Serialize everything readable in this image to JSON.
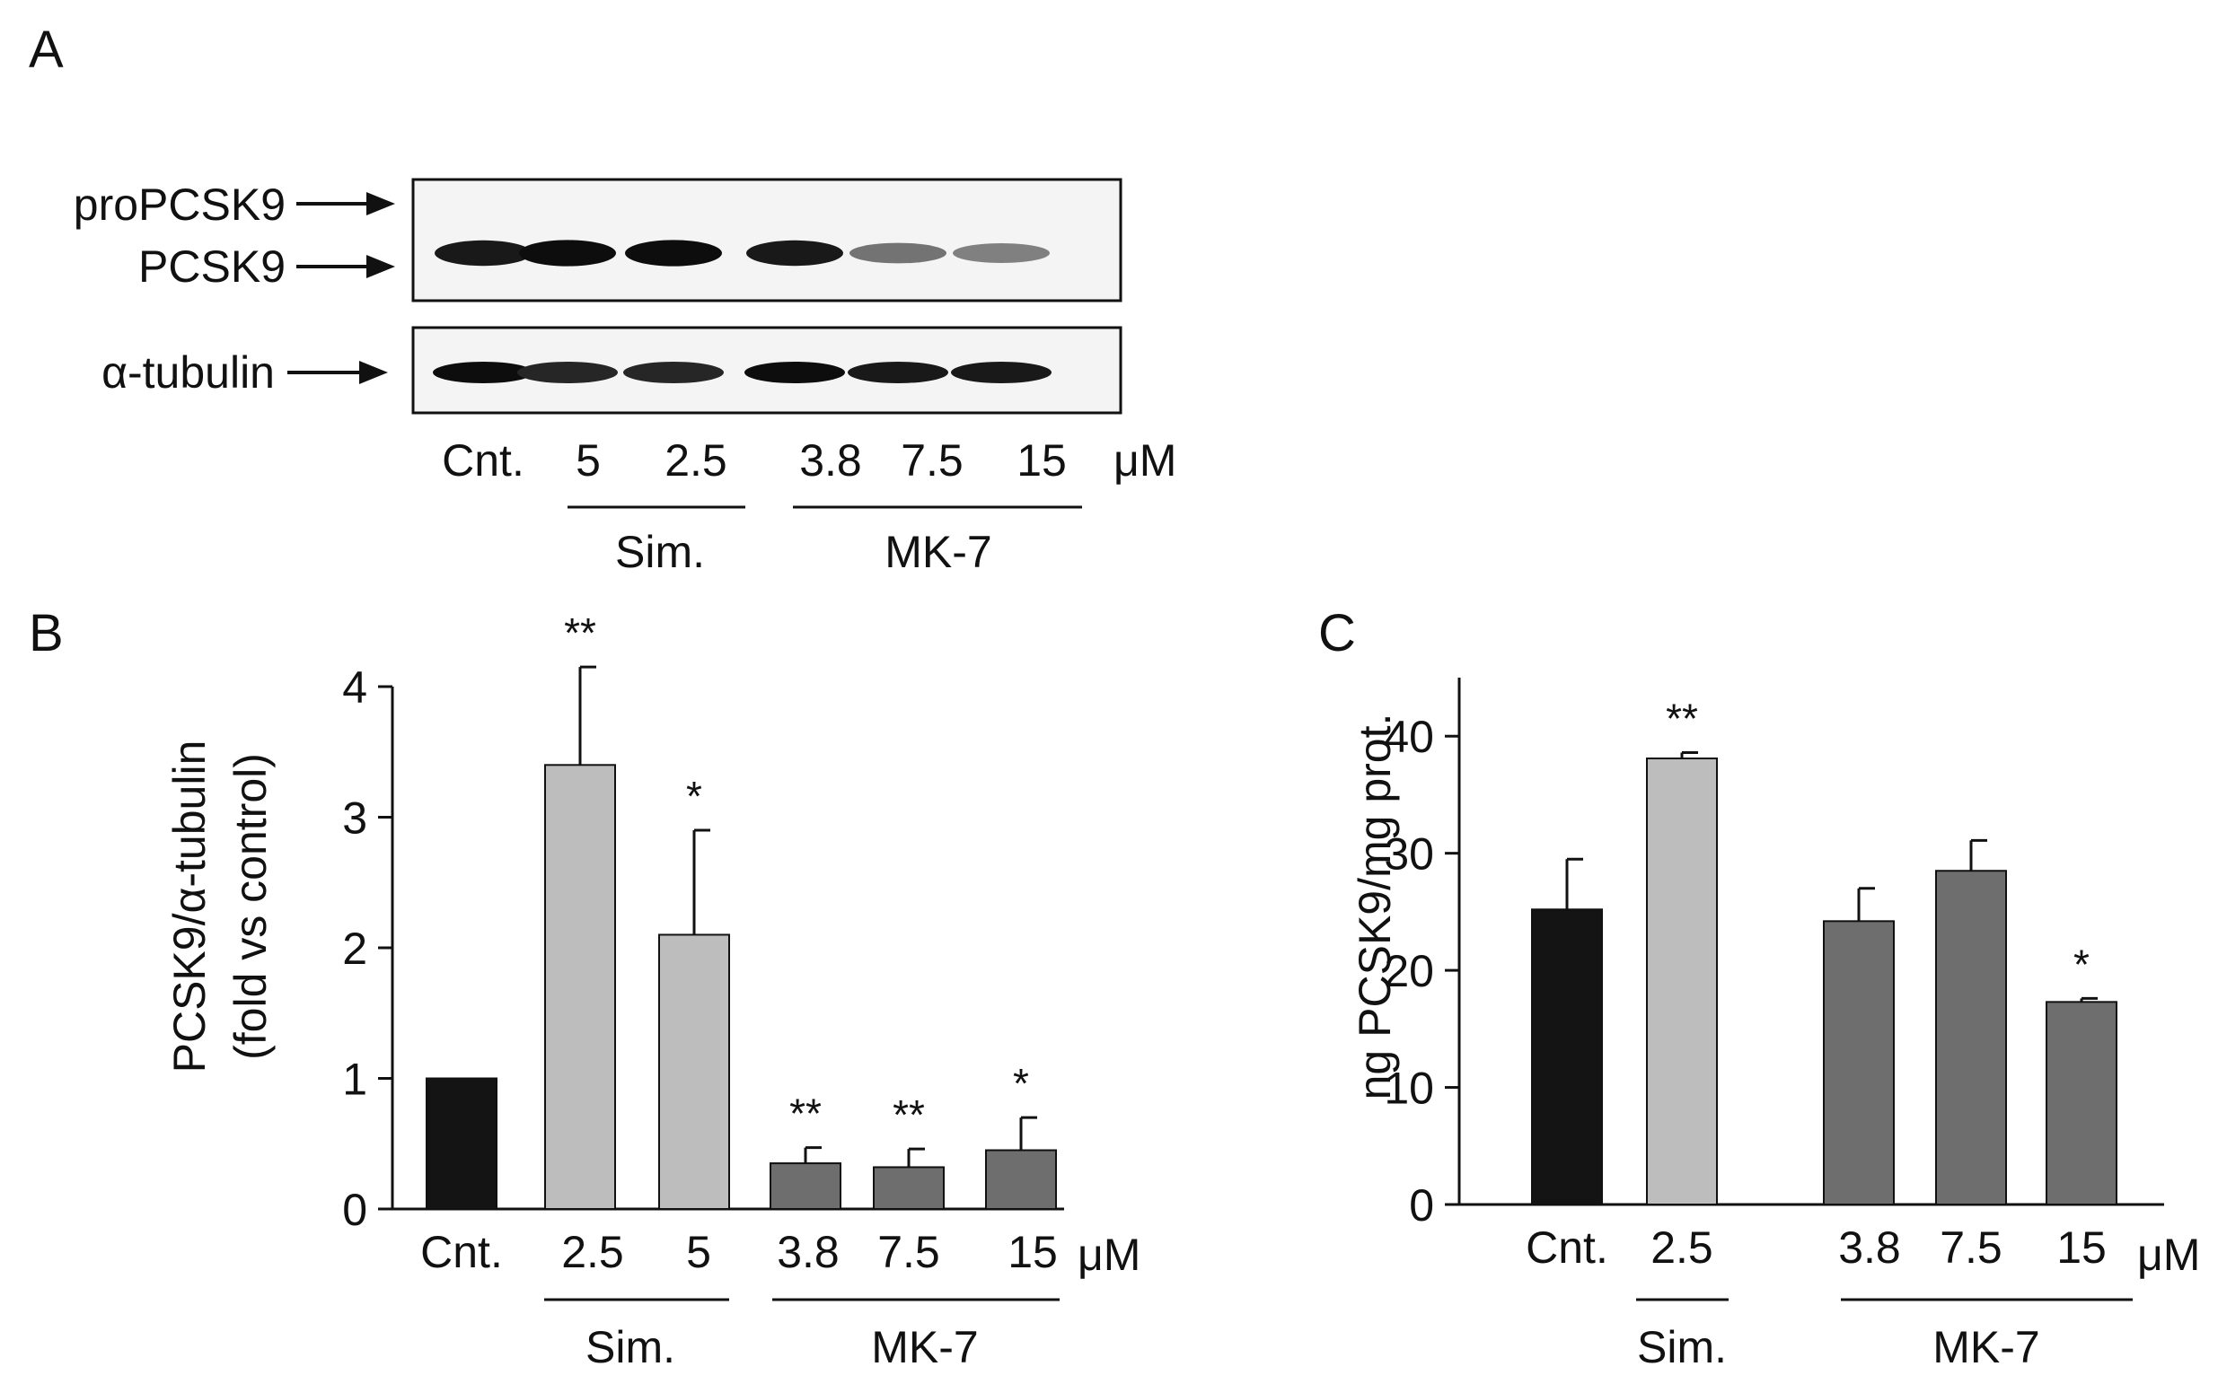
{
  "panels": {
    "A": {
      "letter": "A",
      "blot_labels": {
        "pro": "proPCSK9",
        "mature": "PCSK9",
        "tubulin": "α-tubulin"
      },
      "lanes": [
        "Cnt.",
        "5",
        "2.5",
        "3.8",
        "7.5",
        "15"
      ],
      "unit": "μM",
      "groups": [
        {
          "label": "Sim."
        },
        {
          "label": "MK-7"
        }
      ],
      "band_intensity": {
        "PCSK9": [
          0.9,
          0.95,
          0.95,
          0.9,
          0.55,
          0.5
        ],
        "tubulin": [
          0.95,
          0.85,
          0.85,
          0.95,
          0.9,
          0.9
        ]
      }
    },
    "B": {
      "letter": "B",
      "unit": "μM",
      "groups": [
        {
          "label": "Sim."
        },
        {
          "label": "MK-7"
        }
      ]
    },
    "C": {
      "letter": "C",
      "unit": "μM",
      "groups": [
        {
          "label": "Sim."
        },
        {
          "label": "MK-7"
        }
      ]
    }
  },
  "chart_data": [
    {
      "id": "B",
      "type": "bar",
      "categories": [
        "Cnt.",
        "2.5",
        "5",
        "3.8",
        "7.5",
        "15"
      ],
      "values": [
        1.0,
        3.4,
        2.1,
        0.35,
        0.32,
        0.45
      ],
      "errors": [
        0,
        0.75,
        0.8,
        0.12,
        0.14,
        0.25
      ],
      "significance": [
        "",
        "**",
        "*",
        "**",
        "**",
        "*"
      ],
      "colors": [
        "#141414",
        "#bdbdbd",
        "#bdbdbd",
        "#6e6e6e",
        "#6e6e6e",
        "#6e6e6e"
      ],
      "ylabel_line1": "PCSK9/α-tubulin",
      "ylabel_line2": "(fold vs control)",
      "ylim": [
        0,
        4
      ],
      "yticks": [
        0,
        1,
        2,
        3,
        4
      ]
    },
    {
      "id": "C",
      "type": "bar",
      "categories": [
        "Cnt.",
        "2.5",
        "3.8",
        "7.5",
        "15"
      ],
      "values": [
        25.2,
        38.1,
        24.2,
        28.5,
        17.3
      ],
      "errors": [
        4.3,
        0.5,
        2.8,
        2.6,
        0.3
      ],
      "significance": [
        "",
        "**",
        "",
        "",
        "*"
      ],
      "colors": [
        "#141414",
        "#bdbdbd",
        "#6e6e6e",
        "#6e6e6e",
        "#6e6e6e"
      ],
      "ylabel": "ng PCSK9/mg prot.",
      "ylim": [
        0,
        45
      ],
      "yticks": [
        0,
        10,
        20,
        30,
        40
      ]
    }
  ]
}
